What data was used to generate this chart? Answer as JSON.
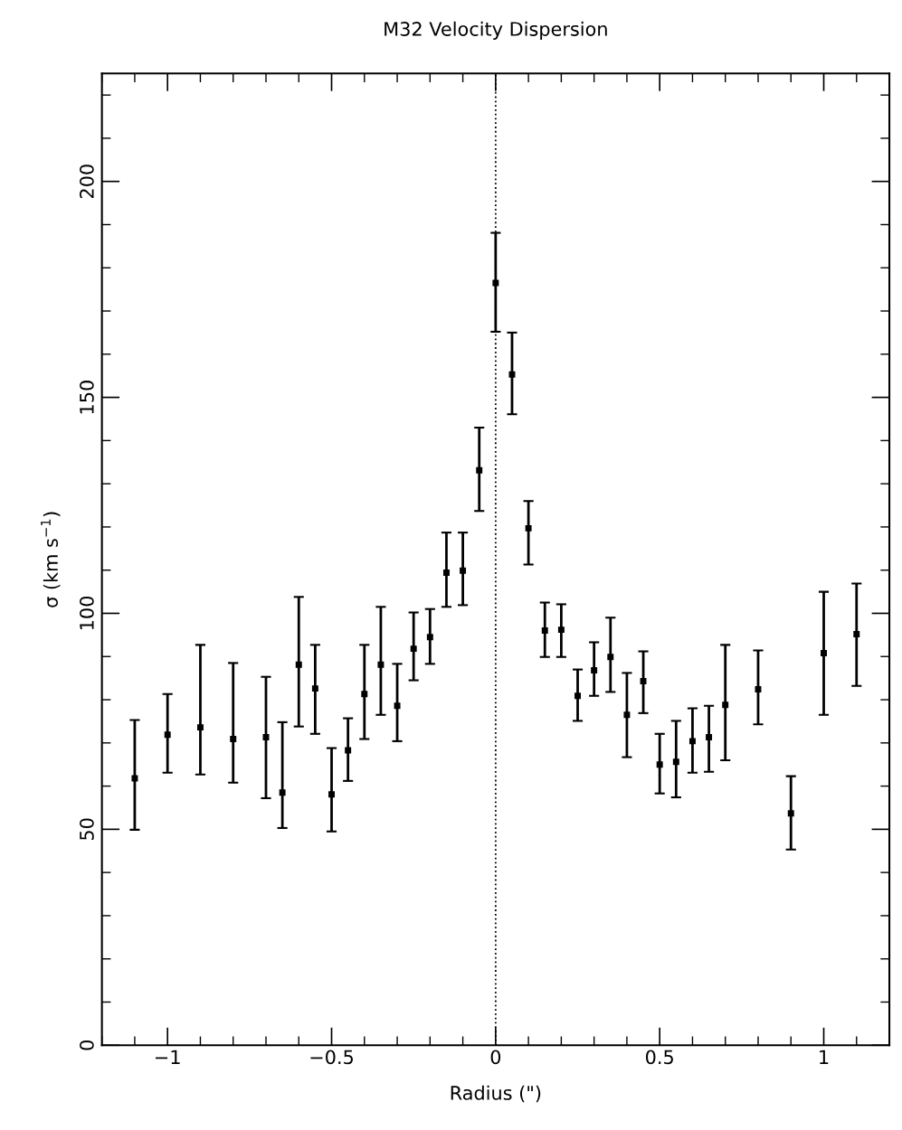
{
  "chart_data": {
    "type": "scatter",
    "title": "M32 Velocity Dispersion",
    "xlabel": "Radius (\")",
    "ylabel": "σ (km s$^{−1}$)",
    "x": [
      -1.1,
      -1.0,
      -0.9,
      -0.8,
      -0.7,
      -0.65,
      -0.6,
      -0.55,
      -0.5,
      -0.45,
      -0.4,
      -0.35,
      -0.3,
      -0.25,
      -0.2,
      -0.15,
      -0.1,
      -0.05,
      0,
      0.05,
      0.1,
      0.15,
      0.2,
      0.25,
      0.3,
      0.35,
      0.4,
      0.45,
      0.5,
      0.55,
      0.6,
      0.65,
      0.7,
      0.8,
      0.9,
      1.0,
      1.1
    ],
    "series": [
      {
        "color": "#000000",
        "values": [
          61.8,
          71.9,
          73.6,
          70.9,
          71.3,
          58.5,
          88.1,
          82.6,
          58.1,
          68.3,
          81.3,
          88.1,
          78.6,
          91.8,
          94.5,
          109.4,
          109.9,
          133.1,
          176.5,
          155.3,
          119.7,
          96.0,
          96.2,
          80.9,
          86.8,
          89.9,
          76.5,
          84.3,
          65.0,
          65.6,
          70.4,
          71.3,
          78.8,
          82.4,
          53.7,
          90.8,
          95.2
        ],
        "errors": [
          [
            49.9,
            75.3
          ],
          [
            63.1,
            81.3
          ],
          [
            62.7,
            92.7
          ],
          [
            60.8,
            88.5
          ],
          [
            57.2,
            85.3
          ],
          [
            50.3,
            74.8
          ],
          [
            73.8,
            103.8
          ],
          [
            72.1,
            92.7
          ],
          [
            49.5,
            68.8
          ],
          [
            61.2,
            75.7
          ],
          [
            70.9,
            92.7
          ],
          [
            76.5,
            101.5
          ],
          [
            70.4,
            88.3
          ],
          [
            84.5,
            100.2
          ],
          [
            88.3,
            101.0
          ],
          [
            101.5,
            118.7
          ],
          [
            101.9,
            118.7
          ],
          [
            123.7,
            143.0
          ],
          [
            165.2,
            188.1
          ],
          [
            146.1,
            165.0
          ],
          [
            111.3,
            126.0
          ],
          [
            89.9,
            102.5
          ],
          [
            89.9,
            102.1
          ],
          [
            75.1,
            87.0
          ],
          [
            80.9,
            93.3
          ],
          [
            81.8,
            99.0
          ],
          [
            66.7,
            86.2
          ],
          [
            76.9,
            91.2
          ],
          [
            58.3,
            72.1
          ],
          [
            57.4,
            75.1
          ],
          [
            63.1,
            78.0
          ],
          [
            63.3,
            78.6
          ],
          [
            66.0,
            92.7
          ],
          [
            74.3,
            91.4
          ],
          [
            45.3,
            62.3
          ],
          [
            76.5,
            105.0
          ],
          [
            83.2,
            106.9
          ]
        ]
      }
    ],
    "xlim": [
      -1.2,
      1.2
    ],
    "ylim": [
      0,
      225
    ],
    "xticks": [
      {
        "value": -1,
        "label": "−1"
      },
      {
        "value": -0.5,
        "label": "−0.5"
      },
      0,
      0.5,
      1
    ],
    "yticks": [
      0,
      50,
      100,
      150,
      200
    ],
    "marker": "square",
    "grid": false,
    "legend": false,
    "ref_lines": [
      {
        "axis": "x",
        "value": 0,
        "line_style": "dotted",
        "color": "#000000"
      }
    ]
  }
}
